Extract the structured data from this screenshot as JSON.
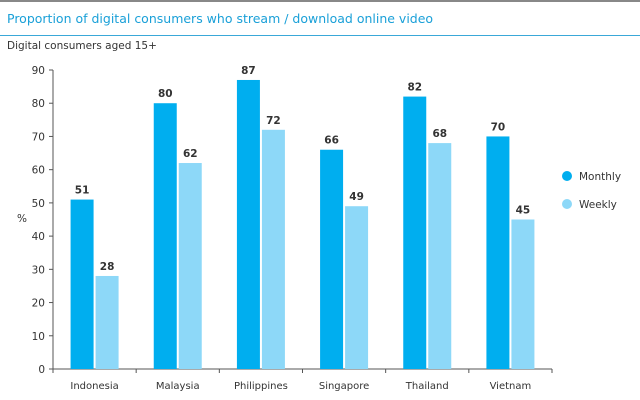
{
  "header": {
    "title": "Proportion of digital consumers who stream / download online video",
    "subtitle": "Digital consumers aged 15+"
  },
  "chart_data": {
    "type": "bar",
    "title": "Proportion of digital consumers who stream / download online video",
    "subtitle": "Digital consumers aged 15+",
    "xlabel": "",
    "ylabel": "%",
    "ylim": [
      0,
      90
    ],
    "yticks": [
      0,
      10,
      20,
      30,
      40,
      50,
      60,
      70,
      80,
      90
    ],
    "categories": [
      "Indonesia",
      "Malaysia",
      "Philippines",
      "Singapore",
      "Thailand",
      "Vietnam"
    ],
    "series": [
      {
        "name": "Monthly",
        "color": "#00aeef",
        "values": [
          51,
          80,
          87,
          66,
          82,
          70
        ]
      },
      {
        "name": "Weekly",
        "color": "#8dd8f8",
        "values": [
          28,
          62,
          72,
          49,
          68,
          45
        ]
      }
    ],
    "legend": "right",
    "grid": false
  }
}
